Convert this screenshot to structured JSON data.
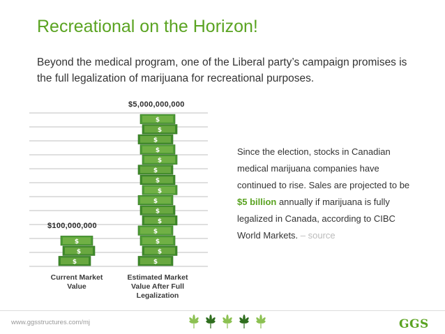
{
  "slide": {
    "title": "Recreational on the Horizon!",
    "subtitle": "Beyond the medical program, one of the Liberal party’s campaign promises is the full legalization of marijuana for recreational purposes."
  },
  "side_text": {
    "part1": "Since the election, stocks in Canadian medical marijuana companies have continued to rise. Sales are projected to be ",
    "highlight": "$5 billion",
    "part2": " annually if marijuana is fully legalized in Canada, according to CIBC World Markets. ",
    "source": "– source"
  },
  "footer": {
    "url": "www.ggsstructures.com/mj",
    "logo": "GGS"
  },
  "colors": {
    "accent": "#5aa321",
    "money_dark": "#3f8a2a",
    "money_light": "#8cc152",
    "grid": "#bfbfbf"
  },
  "icons": [
    "cannabis-leaf-icon",
    "dollar-bill-icon"
  ],
  "chart_data": {
    "type": "bar",
    "title": "",
    "categories": [
      "Current Market Value",
      "Estimated Market Value After Full Legalization"
    ],
    "category_labels": [
      "Current Market\nValue",
      "Estimated Market\nValue After Full\nLegalization"
    ],
    "values": [
      100000000,
      5000000000
    ],
    "value_labels": [
      "$100,000,000",
      "$5,000,000,000"
    ],
    "xlabel": "",
    "ylabel": "",
    "grid": true,
    "bar_style": "stacked dollar bills"
  }
}
